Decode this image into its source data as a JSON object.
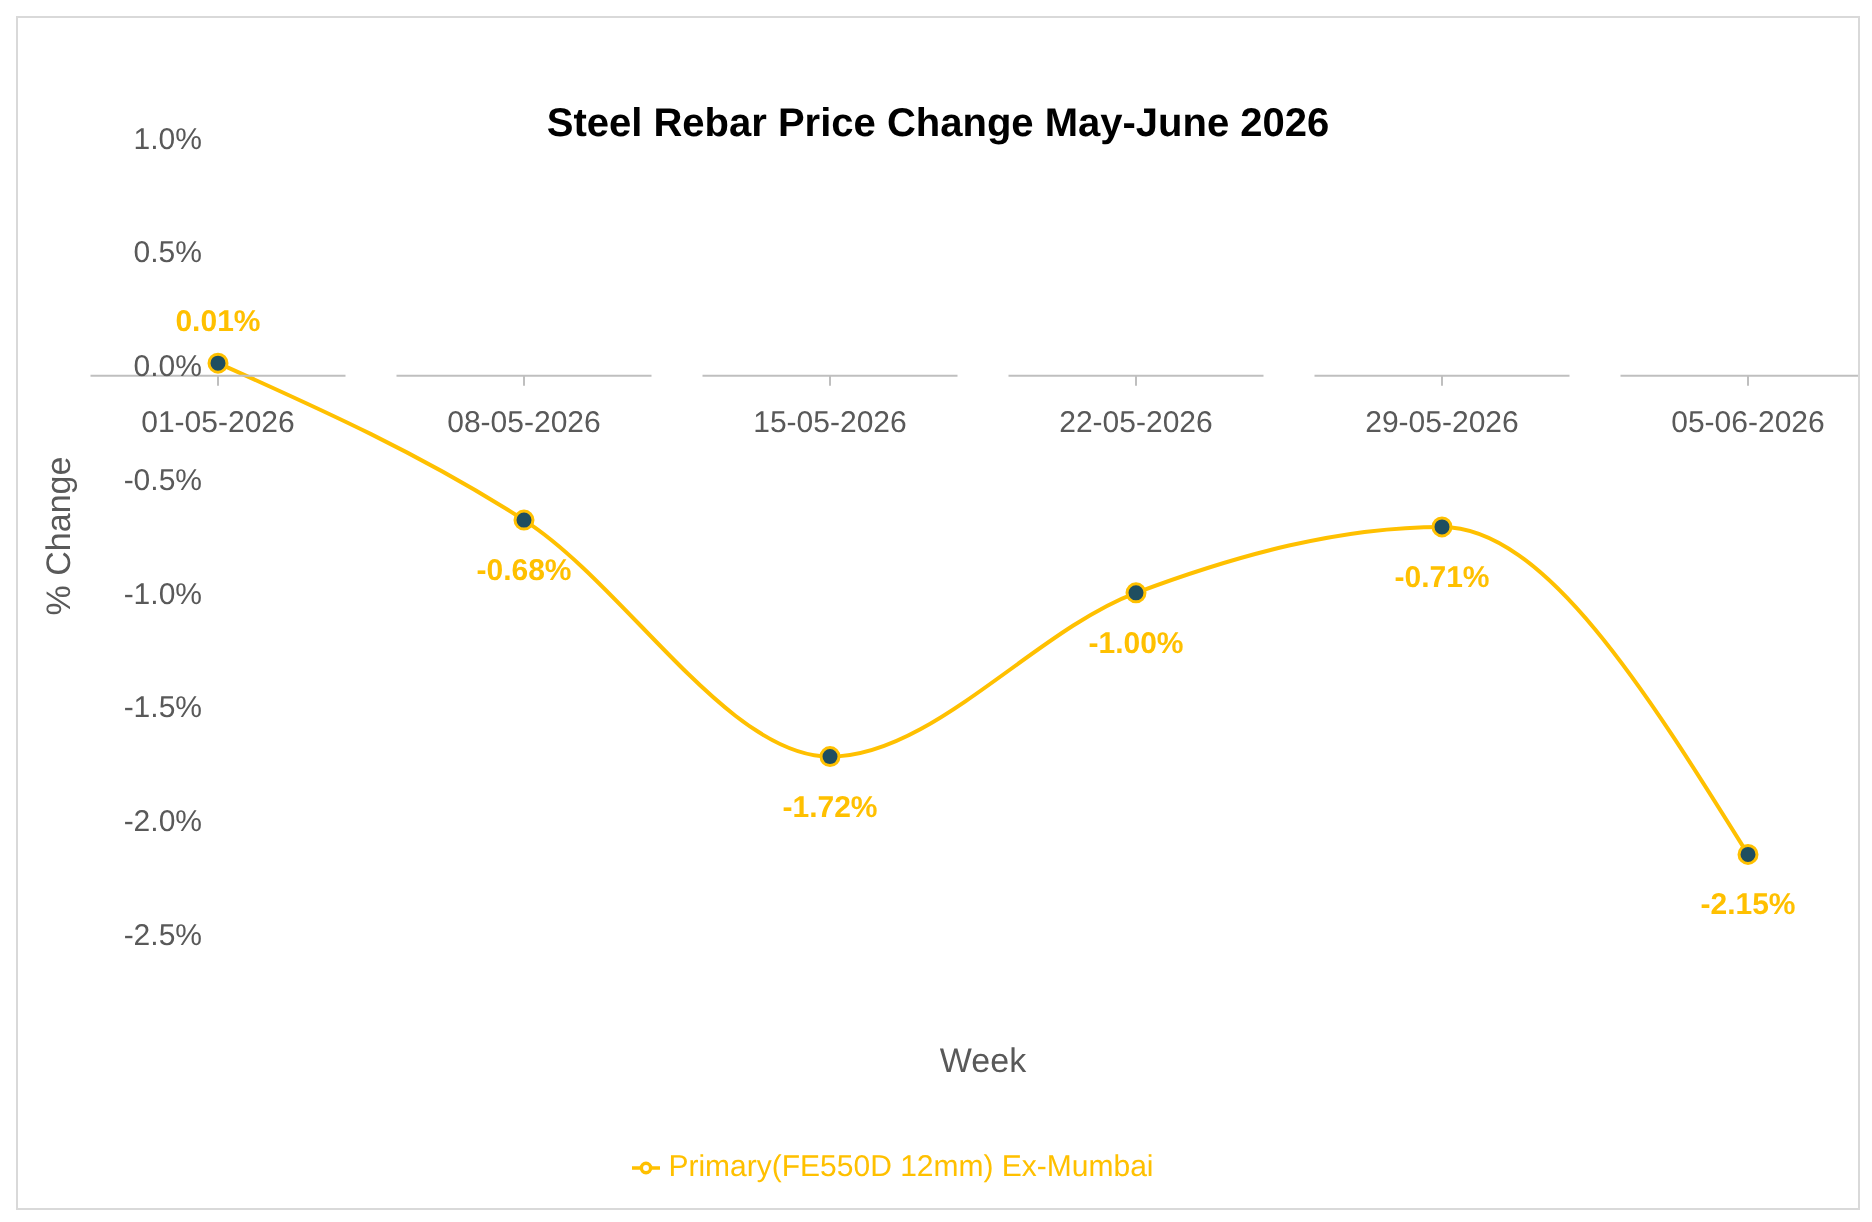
{
  "chart_data": {
    "type": "line",
    "title": "Steel Rebar Price Change May-June 2026",
    "xlabel": "Week",
    "ylabel": "% Change",
    "categories": [
      "01-05-2026",
      "08-05-2026",
      "15-05-2026",
      "22-05-2026",
      "29-05-2026",
      "05-06-2026"
    ],
    "series": [
      {
        "name": "Primary(FE550D 12mm) Ex-Mumbai",
        "color": "#ffc000",
        "values": [
          0.01,
          -0.68,
          -1.72,
          -1.0,
          -0.71,
          -2.15
        ],
        "value_labels": [
          "0.01%",
          "-0.68%",
          "-1.72%",
          "-1.00%",
          "-0.71%",
          "-2.15%"
        ]
      }
    ],
    "ylim": [
      -2.5,
      1.0
    ],
    "yticks": [
      {
        "value": -2.5,
        "label": "-2.5%"
      },
      {
        "value": -2.0,
        "label": "-2.0%"
      },
      {
        "value": -1.5,
        "label": "-1.5%"
      },
      {
        "value": -1.0,
        "label": "-1.0%"
      },
      {
        "value": -0.5,
        "label": "-0.5%"
      },
      {
        "value": 0,
        "label": "0.0%"
      },
      {
        "value": 0.5,
        "label": "0.5%"
      },
      {
        "value": 1.0,
        "label": "1.0%"
      }
    ],
    "grid": false,
    "legend": "bottom",
    "marker": "circle",
    "line_style": "solid"
  }
}
